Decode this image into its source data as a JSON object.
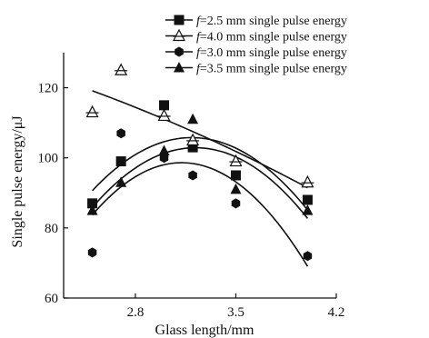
{
  "chart_data": {
    "type": "scatter",
    "title": "",
    "xlabel": "Glass length/mm",
    "ylabel": "Single pulse energy/μJ",
    "xlim": [
      2.3,
      4.2
    ],
    "ylim": [
      60,
      130
    ],
    "xticks": [
      2.8,
      3.5,
      4.2
    ],
    "yticks": [
      60,
      80,
      100,
      120
    ],
    "x_tick_labels": [
      "2.8",
      "3.5",
      "4.2"
    ],
    "y_tick_labels": [
      "60",
      "80",
      "100",
      "120"
    ],
    "legend_position": "top-right",
    "fit_curves": true,
    "grid": false,
    "series": [
      {
        "f_symbol": "f",
        "label_rest": "=2.5 mm single pulse energy",
        "marker": "square",
        "x": [
          2.5,
          2.7,
          3.0,
          3.2,
          3.5,
          4.0
        ],
        "y": [
          87,
          99,
          115,
          103,
          95,
          88
        ]
      },
      {
        "f_symbol": "f",
        "label_rest": "=4.0 mm single pulse energy",
        "marker": "triangle-open",
        "x": [
          2.5,
          2.7,
          3.0,
          3.2,
          3.5,
          4.0
        ],
        "y": [
          113,
          125,
          112,
          105,
          99,
          93
        ]
      },
      {
        "f_symbol": "f",
        "label_rest": "=3.0 mm single pulse energy",
        "marker": "hexagon",
        "x": [
          2.5,
          2.7,
          3.0,
          3.2,
          3.5,
          4.0
        ],
        "y": [
          73,
          107,
          100,
          95,
          87,
          72
        ]
      },
      {
        "f_symbol": "f",
        "label_rest": "=3.5 mm single pulse energy",
        "marker": "triangle-filled",
        "x": [
          2.5,
          2.7,
          3.0,
          3.2,
          3.5,
          4.0
        ],
        "y": [
          85,
          93,
          102,
          111,
          91,
          85
        ]
      }
    ],
    "colors": {
      "ink": "#111111",
      "background": "#ffffff"
    }
  }
}
